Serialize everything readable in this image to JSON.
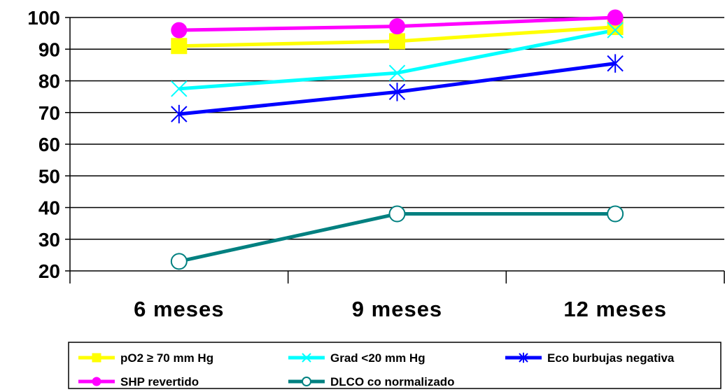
{
  "chart_data": {
    "type": "line",
    "title": "",
    "xlabel": "",
    "ylabel": "",
    "categories": [
      "6 meses",
      "9 meses",
      "12 meses"
    ],
    "ylim": [
      20,
      100
    ],
    "yticks": [
      20,
      30,
      40,
      50,
      60,
      70,
      80,
      90,
      100
    ],
    "grid": "horizontal",
    "legend_position": "bottom",
    "series": [
      {
        "name": "pO2 ≥ 70 mm Hg",
        "values": [
          91,
          92.5,
          97
        ],
        "color": "#ffff00",
        "marker": "square"
      },
      {
        "name": "Grad <20 mm Hg",
        "values": [
          77.5,
          82.5,
          96
        ],
        "color": "#00ffff",
        "marker": "x"
      },
      {
        "name": "Eco burbujas negativa",
        "values": [
          69.5,
          76.5,
          85.5
        ],
        "color": "#0000ff",
        "marker": "asterisk"
      },
      {
        "name": "SHP revertido",
        "values": [
          96,
          97.2,
          100
        ],
        "color": "#ff00ff",
        "marker": "circle"
      },
      {
        "name": "DLCO co normalizado",
        "values": [
          23,
          38,
          38
        ],
        "color": "#008080",
        "marker": "open-circle"
      }
    ]
  }
}
